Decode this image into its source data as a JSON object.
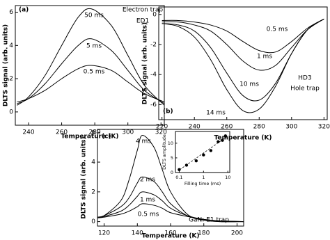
{
  "chart_data": [
    {
      "type": "line",
      "xlabel": "Temperature (K)",
      "ylabel": "DLTS signal (arb. units)",
      "annotations": [
        "(a)",
        "Electron trap",
        "ED1"
      ],
      "color": "#000000",
      "x": [
        233,
        240,
        250,
        260,
        270,
        278,
        290,
        300,
        310,
        322
      ],
      "series": [
        {
          "name": "50 ms",
          "values": [
            0.4,
            0.9,
            2.2,
            4.0,
            5.7,
            6.2,
            5.2,
            3.4,
            1.6,
            0.4
          ]
        },
        {
          "name": "5 ms",
          "values": [
            0.5,
            0.8,
            1.7,
            2.9,
            4.0,
            4.4,
            3.7,
            2.5,
            1.3,
            0.5
          ]
        },
        {
          "name": "0.5 ms",
          "values": [
            0.6,
            0.8,
            1.3,
            2.0,
            2.6,
            2.8,
            2.5,
            1.8,
            1.1,
            0.6
          ]
        }
      ],
      "xlim": [
        232,
        322
      ],
      "ylim": [
        -0.8,
        6.4
      ],
      "xticks": [
        240,
        260,
        280,
        300,
        320
      ],
      "yticks": [
        0,
        2,
        4,
        6
      ]
    },
    {
      "type": "line",
      "xlabel": "Temperature (K)",
      "ylabel": "DLTS signal (arb. units)",
      "annotations": [
        "(b)",
        "HD3",
        "Hole trap"
      ],
      "color": "#000000",
      "x": [
        220,
        230,
        240,
        250,
        260,
        270,
        280,
        290,
        300,
        310,
        320
      ],
      "series": [
        {
          "name": "0.5 ms",
          "values": [
            -0.4,
            -0.4,
            -0.5,
            -0.7,
            -1.1,
            -1.8,
            -2.4,
            -2.5,
            -1.8,
            -0.9,
            -0.3
          ]
        },
        {
          "name": "1 ms",
          "values": [
            -0.5,
            -0.5,
            -0.7,
            -1.1,
            -2.0,
            -3.1,
            -3.7,
            -3.4,
            -2.2,
            -1.0,
            -0.3
          ]
        },
        {
          "name": "10 ms",
          "values": [
            -0.6,
            -0.7,
            -1.1,
            -2.2,
            -3.9,
            -5.4,
            -5.7,
            -4.6,
            -2.6,
            -1.0,
            -0.3
          ]
        },
        {
          "name": "14 ms",
          "values": [
            -0.6,
            -0.8,
            -1.5,
            -3.0,
            -5.0,
            -6.4,
            -6.3,
            -4.8,
            -2.6,
            -1.0,
            -0.3
          ]
        }
      ],
      "xlim": [
        218,
        322
      ],
      "ylim": [
        -7,
        0.5
      ],
      "xticks": [
        220,
        240,
        260,
        280,
        300,
        320
      ],
      "yticks": [
        0,
        -2,
        -4,
        -6
      ]
    },
    {
      "type": "line",
      "xlabel": "Temperature (K)",
      "ylabel": "DLTS signal (arb. units)",
      "annotations": [
        "(c)",
        "GaN: E1 trap"
      ],
      "color": "#000000",
      "x": [
        116,
        120,
        130,
        135,
        140,
        143,
        150,
        155,
        160,
        170,
        180,
        190,
        204
      ],
      "series": [
        {
          "name": "4 ms",
          "values": [
            0.3,
            0.4,
            1.4,
            2.8,
            4.8,
            5.8,
            5.0,
            3.5,
            2.0,
            0.5,
            0.1,
            0,
            0
          ]
        },
        {
          "name": "2 ms",
          "values": [
            0.3,
            0.4,
            1.0,
            1.6,
            2.6,
            3.0,
            2.7,
            2.0,
            1.2,
            0.4,
            0.1,
            0,
            0
          ]
        },
        {
          "name": "1 ms",
          "values": [
            0.3,
            0.35,
            0.7,
            1.1,
            1.7,
            2.0,
            1.8,
            1.4,
            0.9,
            0.4,
            0.15,
            0.05,
            0
          ]
        },
        {
          "name": "0.5 ms",
          "values": [
            0.25,
            0.3,
            0.5,
            0.7,
            1.0,
            1.2,
            1.1,
            0.9,
            0.6,
            0.35,
            0.15,
            0.05,
            0
          ]
        }
      ],
      "xlim": [
        116,
        204
      ],
      "ylim": [
        -0.3,
        6.2
      ],
      "xticks": [
        120,
        140,
        160,
        180,
        200
      ],
      "yticks": [
        0,
        2,
        4,
        6
      ]
    },
    {
      "type": "scatter",
      "xlabel": "Filling time (ms)",
      "ylabel": "DLTS amplitude",
      "color": "#000000",
      "x": [
        0.1,
        0.2,
        0.5,
        1,
        2,
        4,
        6,
        8
      ],
      "values": [
        1,
        2.5,
        4,
        6,
        7.5,
        10.5,
        11,
        12.5
      ],
      "xscale": "log",
      "xlim": [
        0.07,
        12
      ],
      "ylim": [
        0,
        14
      ],
      "xticks": [
        0.1,
        1,
        10
      ],
      "yticks": [
        0,
        5,
        10
      ]
    }
  ]
}
